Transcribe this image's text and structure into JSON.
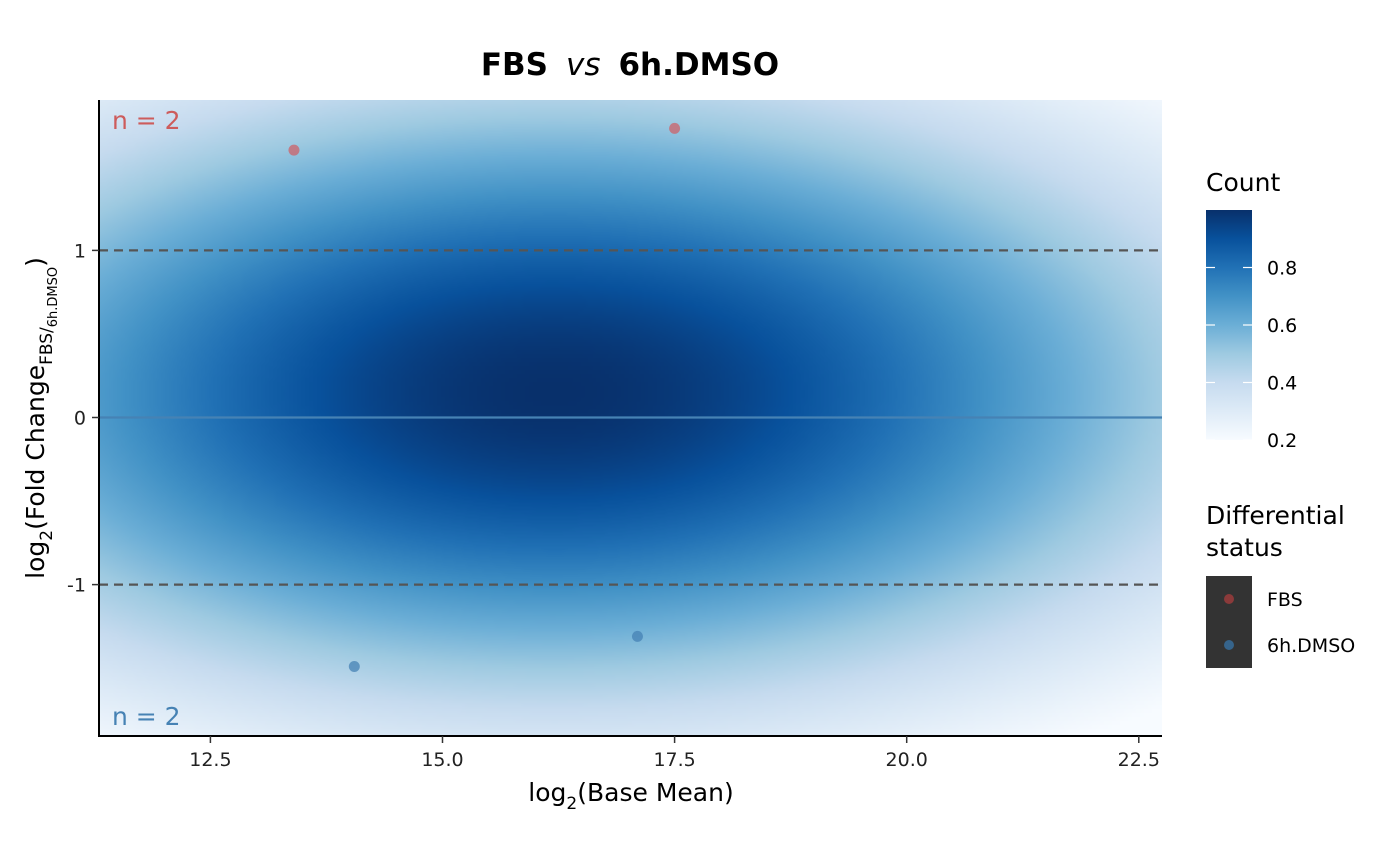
{
  "chart_data": {
    "type": "scatter",
    "title": {
      "group1": "FBS",
      "vs": "vs",
      "group2": "6h.DMSO"
    },
    "xlabel": {
      "base": "log",
      "sub": "2",
      "rest": "(Base Mean)"
    },
    "ylabel": {
      "base": "log",
      "sub": "2",
      "main": "(Fold Change",
      "num": "FBS",
      "slash": "/",
      "den": "6h.DMSO",
      "close": ")"
    },
    "xlim": [
      11.3,
      22.75
    ],
    "ylim": [
      -1.9,
      1.9
    ],
    "x_ticks": [
      {
        "value": 12.5,
        "label": "12.5"
      },
      {
        "value": 15.0,
        "label": "15.0"
      },
      {
        "value": 17.5,
        "label": "17.5"
      },
      {
        "value": 20.0,
        "label": "20.0"
      },
      {
        "value": 22.5,
        "label": "22.5"
      }
    ],
    "y_ticks": [
      {
        "value": 1,
        "label": "1"
      },
      {
        "value": 0,
        "label": "0"
      },
      {
        "value": -1,
        "label": "-1"
      }
    ],
    "reference_lines": {
      "dashed_y": [
        1,
        -1
      ],
      "solid_y": 0
    },
    "density": {
      "center_x": 16.2,
      "center_y": 0.15,
      "sd_x": 5.5,
      "sd_y": 1.4
    },
    "series": [
      {
        "name": "FBS",
        "color": "#cd6168",
        "points": [
          {
            "x": 13.4,
            "y": 1.6
          },
          {
            "x": 17.5,
            "y": 1.73
          }
        ]
      },
      {
        "name": "6h.DMSO",
        "color": "#4682b4",
        "points": [
          {
            "x": 14.05,
            "y": -1.49
          },
          {
            "x": 17.1,
            "y": -1.31
          }
        ]
      }
    ],
    "annotations": [
      {
        "text": "n = 2",
        "position": "top-left",
        "color": "#cd5c5c"
      },
      {
        "text": "n = 2",
        "position": "bottom-left",
        "color": "#4682b4"
      }
    ],
    "legend": {
      "position": "right",
      "colorbar": {
        "title": "Count",
        "range": [
          0.2,
          1.0
        ],
        "ticks": [
          {
            "value": 0.2,
            "label": "0.2"
          },
          {
            "value": 0.4,
            "label": "0.4"
          },
          {
            "value": 0.6,
            "label": "0.6"
          },
          {
            "value": 0.8,
            "label": "0.8"
          }
        ],
        "colors": [
          "#f7fbff",
          "#deebf7",
          "#c6dbef",
          "#9ecae1",
          "#6baed6",
          "#4292c6",
          "#2171b5",
          "#08519c",
          "#08306b"
        ]
      },
      "status": {
        "title_line1": "Differential",
        "title_line2": "status",
        "key_background": "#333333",
        "items": [
          {
            "label": "FBS",
            "color": "#8b3a3a"
          },
          {
            "label": "6h.DMSO",
            "color": "#36648b"
          }
        ]
      }
    },
    "grid": false
  }
}
